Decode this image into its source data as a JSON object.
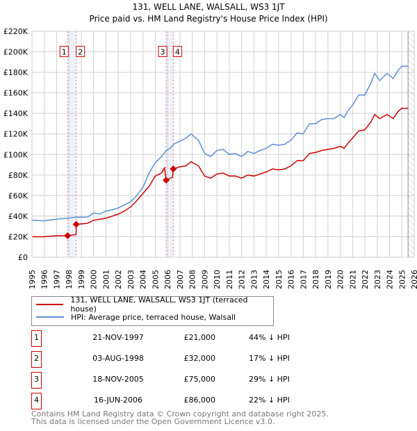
{
  "chart_data": {
    "type": "line",
    "title": "131, WELL LANE, WALSALL, WS3 1JT",
    "subtitle": "Price paid vs. HM Land Registry's House Price Index (HPI)",
    "xlim": [
      1995,
      2026
    ],
    "ylim": [
      0,
      220000
    ],
    "grid": true,
    "y_ticks": [
      "£0",
      "£20K",
      "£40K",
      "£60K",
      "£80K",
      "£100K",
      "£120K",
      "£140K",
      "£160K",
      "£180K",
      "£200K",
      "£220K"
    ],
    "x_ticks": [
      "1995",
      "1996",
      "1997",
      "1998",
      "1999",
      "2000",
      "2001",
      "2002",
      "2003",
      "2004",
      "2005",
      "2006",
      "2007",
      "2008",
      "2009",
      "2010",
      "2011",
      "2012",
      "2013",
      "2014",
      "2015",
      "2016",
      "2017",
      "2018",
      "2019",
      "2020",
      "2021",
      "2022",
      "2023",
      "2024",
      "2025",
      "2026"
    ],
    "forecast_hatch_from": 2025.5,
    "series": [
      {
        "name": "131, WELL LANE, WALSALL, WS3 1JT (terraced house)",
        "color": "#cc0000",
        "x": [
          1995,
          1996,
          1997,
          1997.89,
          1998.58,
          1998.59,
          1999.5,
          2000,
          2001,
          2002,
          2002.5,
          2003,
          2003.5,
          2004,
          2004.5,
          2005,
          2005.5,
          2005.75,
          2005.88,
          2006.4,
          2006.46,
          2007,
          2007.5,
          2007.9,
          2008.5,
          2009,
          2009.5,
          2010,
          2010.5,
          2011,
          2011.5,
          2012,
          2012.5,
          2013,
          2013.5,
          2014,
          2014.5,
          2015,
          2015.5,
          2016,
          2016.5,
          2017,
          2017.5,
          2018,
          2018.5,
          2019,
          2019.5,
          2020,
          2020.3,
          2020.7,
          2021,
          2021.5,
          2022,
          2022.5,
          2022.8,
          2023.2,
          2023.8,
          2024.3,
          2024.7,
          2025,
          2025.5
        ],
        "y": [
          20000,
          20000,
          21000,
          21000,
          22000,
          32000,
          33000,
          36000,
          38000,
          42000,
          45000,
          49000,
          55000,
          62000,
          69000,
          79000,
          82000,
          87000,
          75000,
          78000,
          86000,
          88000,
          89000,
          93000,
          89000,
          79000,
          77000,
          81000,
          82000,
          79000,
          79000,
          77000,
          80000,
          79000,
          81000,
          83000,
          86000,
          85000,
          86000,
          89000,
          94000,
          94000,
          101000,
          102000,
          104000,
          105000,
          106000,
          108000,
          106000,
          112000,
          116000,
          123000,
          124000,
          132000,
          139000,
          135000,
          139000,
          135000,
          142000,
          145000,
          145000
        ]
      },
      {
        "name": "HPI: Average price, terraced house, Walsall",
        "color": "#5b8fd4",
        "x": [
          1995,
          1996,
          1997,
          1997.9,
          1998.6,
          1999.5,
          2000,
          2000.5,
          2001,
          2001.5,
          2002,
          2002.5,
          2003,
          2003.5,
          2004,
          2004.5,
          2005,
          2005.5,
          2005.9,
          2006.2,
          2006.5,
          2007,
          2007.5,
          2007.9,
          2008.5,
          2009,
          2009.5,
          2010,
          2010.5,
          2011,
          2011.5,
          2012,
          2012.5,
          2013,
          2013.5,
          2014,
          2014.5,
          2015,
          2015.5,
          2016,
          2016.5,
          2017,
          2017.5,
          2018,
          2018.5,
          2019,
          2019.5,
          2020,
          2020.3,
          2020.7,
          2021,
          2021.5,
          2022,
          2022.5,
          2022.8,
          2023.2,
          2023.8,
          2024.3,
          2024.7,
          2025,
          2025.5
        ],
        "y": [
          36000,
          35500,
          37000,
          38000,
          39000,
          39000,
          43000,
          42000,
          45000,
          46000,
          48000,
          51000,
          54000,
          60000,
          68000,
          82000,
          92000,
          98000,
          104000,
          106000,
          110000,
          113000,
          116000,
          120000,
          114000,
          101000,
          98000,
          104000,
          105000,
          100000,
          101000,
          98000,
          103000,
          101000,
          104000,
          106000,
          110000,
          109000,
          110000,
          114000,
          121000,
          120000,
          130000,
          130000,
          134000,
          135000,
          135000,
          139000,
          136000,
          144000,
          148000,
          158000,
          158000,
          170000,
          179000,
          172000,
          179000,
          174000,
          182000,
          186000,
          186000
        ]
      }
    ],
    "sales": [
      {
        "label": "1",
        "x": 1997.89,
        "price": 21000,
        "date": "21-NOV-1997",
        "price_text": "£21,000",
        "hpi_text": "44% ↓ HPI"
      },
      {
        "label": "2",
        "x": 1998.59,
        "price": 32000,
        "date": "03-AUG-1998",
        "price_text": "£32,000",
        "hpi_text": "17% ↓ HPI"
      },
      {
        "label": "3",
        "x": 2005.88,
        "price": 75000,
        "date": "18-NOV-2005",
        "price_text": "£75,000",
        "hpi_text": "29% ↓ HPI"
      },
      {
        "label": "4",
        "x": 2006.46,
        "price": 86000,
        "date": "16-JUN-2006",
        "price_text": "£86,000",
        "hpi_text": "22% ↓ HPI"
      }
    ],
    "bands": [
      [
        1997.89,
        1998.59
      ],
      [
        2005.88,
        2006.46
      ]
    ]
  },
  "legend": {
    "property": "131, WELL LANE, WALSALL, WS3 1JT (terraced house)",
    "hpi": "HPI: Average price, terraced house, Walsall"
  },
  "footer": {
    "line1": "Contains HM Land Registry data © Crown copyright and database right 2025.",
    "line2": "This data is licensed under the Open Government Licence v3.0."
  }
}
